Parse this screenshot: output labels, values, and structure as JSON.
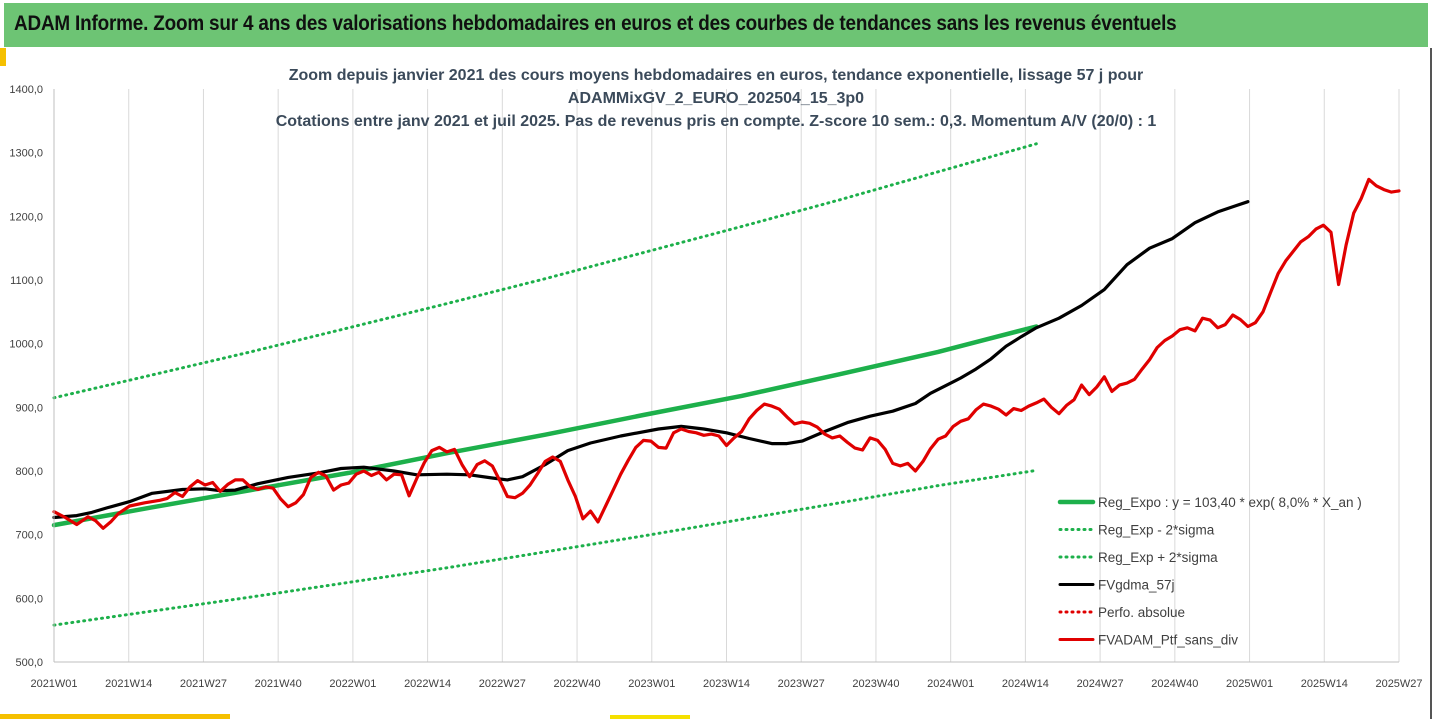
{
  "header": {
    "title": "ADAM Informe. Zoom sur 4 ans des valorisations hebdomadaires en euros et des courbes de tendances sans les revenus éventuels"
  },
  "colors": {
    "header_bg": "#6dc474",
    "trend": "#1db04b",
    "sma": "#000000",
    "price": "#e00000",
    "accent": "#f5c000"
  },
  "chart_data": {
    "type": "line",
    "title": [
      "Zoom depuis janvier 2021 des cours moyens hebdomadaires  en euros, tendance exponentielle, lissage 57 j pour",
      "ADAMMixGV_2_EURO_202504_15_3p0",
      "Cotations entre janv 2021 et juil 2025. Pas de revenus pris en compte. Z-score 10 sem.: 0,3. Momentum A/V (20/0) : 1"
    ],
    "ylim": [
      500,
      1400
    ],
    "y_ticks": [
      "500,0",
      "600,0",
      "700,0",
      "800,0",
      "900,0",
      "1000,0",
      "1100,0",
      "1200,0",
      "1300,0",
      "1400,0"
    ],
    "x_ticks": [
      "2021W01",
      "2021W14",
      "2021W27",
      "2021W40",
      "2022W01",
      "2022W14",
      "2022W27",
      "2022W40",
      "2023W01",
      "2023W14",
      "2023W27",
      "2023W40",
      "2024W01",
      "2024W14",
      "2024W27",
      "2024W40",
      "2025W01",
      "2025W14",
      "2025W27"
    ],
    "grid": "vertical",
    "legend_position": "bottom-right",
    "series": [
      {
        "name": "Reg_Expo : y = 103,40 * exp( 8,0% *  X_an )",
        "style": "solid",
        "color": "#1db04b",
        "points": [
          [
            0,
            715
          ],
          [
            26,
            743
          ],
          [
            52,
            770
          ],
          [
            78,
            797
          ],
          [
            104,
            828
          ],
          [
            130,
            857
          ],
          [
            156,
            888
          ],
          [
            182,
            918
          ],
          [
            208,
            952
          ],
          [
            234,
            987
          ],
          [
            247,
            1007
          ],
          [
            260,
            1027
          ]
        ]
      },
      {
        "name": "Reg_Exp - 2*sigma",
        "style": "dotted",
        "color": "#1db04b",
        "points": [
          [
            0,
            558
          ],
          [
            26,
            580
          ],
          [
            52,
            602
          ],
          [
            78,
            625
          ],
          [
            104,
            648
          ],
          [
            130,
            673
          ],
          [
            156,
            698
          ],
          [
            182,
            724
          ],
          [
            208,
            750
          ],
          [
            234,
            777
          ],
          [
            260,
            801
          ]
        ]
      },
      {
        "name": "Reg_Exp + 2*sigma",
        "style": "dotted",
        "color": "#1db04b",
        "points": [
          [
            0,
            915
          ],
          [
            26,
            951
          ],
          [
            52,
            987
          ],
          [
            78,
            1025
          ],
          [
            104,
            1063
          ],
          [
            130,
            1102
          ],
          [
            156,
            1143
          ],
          [
            182,
            1184
          ],
          [
            208,
            1226
          ],
          [
            234,
            1270
          ],
          [
            260,
            1314
          ]
        ]
      },
      {
        "name": "FVgdma_57j",
        "style": "solid",
        "color": "#000000",
        "points": [
          [
            0,
            727
          ],
          [
            6,
            730
          ],
          [
            10,
            735
          ],
          [
            14,
            742
          ],
          [
            20,
            752
          ],
          [
            26,
            765
          ],
          [
            34,
            771
          ],
          [
            40,
            772
          ],
          [
            44,
            769
          ],
          [
            48,
            770
          ],
          [
            54,
            780
          ],
          [
            62,
            790
          ],
          [
            70,
            797
          ],
          [
            76,
            804
          ],
          [
            82,
            806
          ],
          [
            86,
            803
          ],
          [
            90,
            800
          ],
          [
            96,
            794
          ],
          [
            104,
            795
          ],
          [
            110,
            794
          ],
          [
            116,
            789
          ],
          [
            120,
            786
          ],
          [
            124,
            791
          ],
          [
            130,
            810
          ],
          [
            136,
            832
          ],
          [
            142,
            844
          ],
          [
            150,
            855
          ],
          [
            160,
            866
          ],
          [
            166,
            870
          ],
          [
            172,
            866
          ],
          [
            178,
            860
          ],
          [
            184,
            851
          ],
          [
            190,
            843
          ],
          [
            194,
            843
          ],
          [
            198,
            847
          ],
          [
            204,
            862
          ],
          [
            210,
            876
          ],
          [
            216,
            886
          ],
          [
            222,
            894
          ],
          [
            228,
            906
          ],
          [
            232,
            922
          ],
          [
            236,
            934
          ],
          [
            240,
            946
          ],
          [
            244,
            960
          ],
          [
            248,
            976
          ],
          [
            252,
            996
          ],
          [
            256,
            1011
          ],
          [
            260,
            1025
          ],
          [
            266,
            1040
          ],
          [
            272,
            1060
          ],
          [
            278,
            1085
          ],
          [
            284,
            1124
          ],
          [
            290,
            1150
          ],
          [
            296,
            1165
          ],
          [
            302,
            1190
          ],
          [
            308,
            1207
          ],
          [
            313,
            1217
          ],
          [
            316,
            1223
          ]
        ]
      },
      {
        "name": "Perfo. absolue",
        "style": "dotted",
        "color": "#e00000",
        "points": []
      },
      {
        "name": "FVADAM_Ptf_sans_div",
        "style": "solid",
        "color": "#e00000",
        "points": [
          [
            0,
            736
          ],
          [
            3,
            727
          ],
          [
            6,
            716
          ],
          [
            9,
            728
          ],
          [
            11,
            722
          ],
          [
            13,
            710
          ],
          [
            15,
            720
          ],
          [
            17,
            733
          ],
          [
            20,
            745
          ],
          [
            24,
            750
          ],
          [
            28,
            754
          ],
          [
            30,
            757
          ],
          [
            32,
            766
          ],
          [
            34,
            760
          ],
          [
            36,
            775
          ],
          [
            38,
            785
          ],
          [
            40,
            778
          ],
          [
            42,
            782
          ],
          [
            44,
            768
          ],
          [
            46,
            779
          ],
          [
            48,
            786
          ],
          [
            50,
            786
          ],
          [
            52,
            775
          ],
          [
            54,
            771
          ],
          [
            56,
            775
          ],
          [
            58,
            773
          ],
          [
            60,
            756
          ],
          [
            62,
            744
          ],
          [
            64,
            750
          ],
          [
            66,
            763
          ],
          [
            68,
            790
          ],
          [
            70,
            798
          ],
          [
            72,
            792
          ],
          [
            74,
            770
          ],
          [
            76,
            778
          ],
          [
            78,
            781
          ],
          [
            80,
            795
          ],
          [
            82,
            800
          ],
          [
            84,
            793
          ],
          [
            86,
            798
          ],
          [
            88,
            786
          ],
          [
            90,
            795
          ],
          [
            92,
            794
          ],
          [
            94,
            761
          ],
          [
            96,
            788
          ],
          [
            98,
            813
          ],
          [
            100,
            832
          ],
          [
            102,
            837
          ],
          [
            104,
            830
          ],
          [
            106,
            834
          ],
          [
            108,
            810
          ],
          [
            110,
            791
          ],
          [
            112,
            810
          ],
          [
            114,
            816
          ],
          [
            116,
            808
          ],
          [
            118,
            785
          ],
          [
            120,
            760
          ],
          [
            122,
            758
          ],
          [
            124,
            765
          ],
          [
            126,
            778
          ],
          [
            128,
            796
          ],
          [
            130,
            815
          ],
          [
            132,
            822
          ],
          [
            134,
            815
          ],
          [
            136,
            786
          ],
          [
            138,
            760
          ],
          [
            140,
            725
          ],
          [
            142,
            737
          ],
          [
            144,
            720
          ],
          [
            146,
            745
          ],
          [
            148,
            770
          ],
          [
            150,
            795
          ],
          [
            152,
            817
          ],
          [
            154,
            837
          ],
          [
            156,
            848
          ],
          [
            158,
            847
          ],
          [
            160,
            837
          ],
          [
            162,
            836
          ],
          [
            164,
            860
          ],
          [
            166,
            866
          ],
          [
            168,
            862
          ],
          [
            170,
            860
          ],
          [
            172,
            856
          ],
          [
            174,
            858
          ],
          [
            176,
            855
          ],
          [
            178,
            840
          ],
          [
            180,
            852
          ],
          [
            182,
            862
          ],
          [
            184,
            882
          ],
          [
            186,
            895
          ],
          [
            188,
            905
          ],
          [
            190,
            902
          ],
          [
            192,
            897
          ],
          [
            194,
            885
          ],
          [
            196,
            874
          ],
          [
            198,
            877
          ],
          [
            200,
            875
          ],
          [
            202,
            869
          ],
          [
            204,
            858
          ],
          [
            206,
            852
          ],
          [
            208,
            855
          ],
          [
            210,
            845
          ],
          [
            212,
            836
          ],
          [
            214,
            833
          ],
          [
            216,
            852
          ],
          [
            218,
            848
          ],
          [
            220,
            834
          ],
          [
            222,
            812
          ],
          [
            224,
            808
          ],
          [
            226,
            812
          ],
          [
            228,
            800
          ],
          [
            230,
            815
          ],
          [
            232,
            835
          ],
          [
            234,
            850
          ],
          [
            236,
            855
          ],
          [
            238,
            870
          ],
          [
            240,
            878
          ],
          [
            242,
            882
          ],
          [
            244,
            896
          ],
          [
            246,
            905
          ],
          [
            248,
            902
          ],
          [
            250,
            897
          ],
          [
            252,
            888
          ],
          [
            254,
            898
          ],
          [
            256,
            895
          ],
          [
            258,
            902
          ],
          [
            260,
            907
          ],
          [
            262,
            913
          ],
          [
            264,
            900
          ],
          [
            266,
            890
          ],
          [
            268,
            903
          ],
          [
            270,
            912
          ],
          [
            272,
            935
          ],
          [
            274,
            920
          ],
          [
            276,
            932
          ],
          [
            278,
            948
          ],
          [
            280,
            925
          ],
          [
            282,
            935
          ],
          [
            284,
            938
          ],
          [
            286,
            944
          ],
          [
            288,
            960
          ],
          [
            290,
            975
          ],
          [
            292,
            994
          ],
          [
            294,
            1005
          ],
          [
            296,
            1012
          ],
          [
            298,
            1022
          ],
          [
            300,
            1025
          ],
          [
            302,
            1020
          ],
          [
            304,
            1040
          ],
          [
            306,
            1037
          ],
          [
            308,
            1025
          ],
          [
            310,
            1030
          ],
          [
            312,
            1045
          ],
          [
            314,
            1038
          ],
          [
            316,
            1027
          ],
          [
            318,
            1033
          ],
          [
            320,
            1050
          ],
          [
            322,
            1080
          ],
          [
            324,
            1110
          ],
          [
            326,
            1130
          ],
          [
            328,
            1145
          ],
          [
            330,
            1160
          ],
          [
            332,
            1168
          ],
          [
            334,
            1180
          ],
          [
            336,
            1186
          ],
          [
            338,
            1175
          ],
          [
            340,
            1093
          ],
          [
            342,
            1155
          ],
          [
            344,
            1205
          ],
          [
            346,
            1228
          ],
          [
            348,
            1258
          ],
          [
            350,
            1248
          ],
          [
            352,
            1242
          ],
          [
            354,
            1238
          ],
          [
            356,
            1240
          ]
        ]
      }
    ]
  }
}
